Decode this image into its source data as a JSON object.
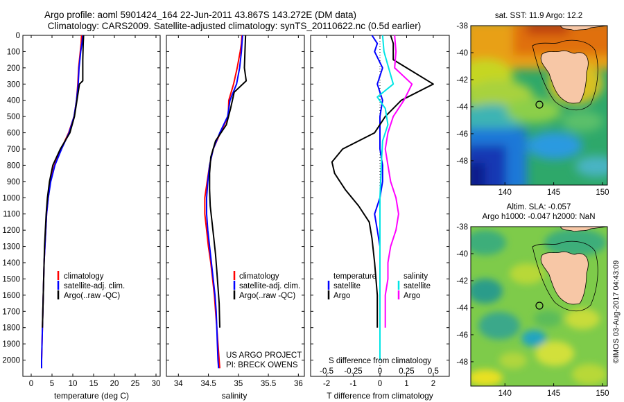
{
  "header": {
    "title_line1": "Argo profile: aoml 5901424_164 22-Jun-2011 43.867S 143.272E (DM data)",
    "title_line2": "Climatology: CARS2009. Satellite-adjusted climatology: synTS_20110622.nc (0.5d earlier)"
  },
  "colors": {
    "climatology": "#ff0000",
    "satellite": "#0000ff",
    "argo": "#000000",
    "salinity_satellite": "#00e5e5",
    "salinity_argo": "#ff00ff",
    "land": "#f7c7a6"
  },
  "chart_data": [
    {
      "type": "line",
      "id": "temperature",
      "xlabel": "temperature (deg C)",
      "ylabel": "",
      "xlim": [
        -2,
        31
      ],
      "ylim": [
        2100,
        0
      ],
      "xticks": [
        0,
        5,
        10,
        15,
        20,
        25,
        30
      ],
      "yticks": [
        0,
        100,
        200,
        300,
        400,
        500,
        600,
        700,
        800,
        900,
        1000,
        1100,
        1200,
        1300,
        1400,
        1500,
        1600,
        1700,
        1800,
        1900,
        2000
      ],
      "legend": [
        "climatology",
        "satellite-adj. clim.",
        "Argo(..raw -QC)"
      ],
      "series": [
        {
          "name": "climatology",
          "color_key": "climatology",
          "points": [
            [
              12.1,
              0
            ],
            [
              12.0,
              50
            ],
            [
              11.8,
              100
            ],
            [
              11.4,
              200
            ],
            [
              11.2,
              300
            ],
            [
              10.9,
              400
            ],
            [
              10.3,
              500
            ],
            [
              9.0,
              600
            ],
            [
              7.2,
              700
            ],
            [
              5.6,
              800
            ],
            [
              4.6,
              900
            ],
            [
              4.1,
              1000
            ],
            [
              3.7,
              1100
            ],
            [
              3.5,
              1200
            ],
            [
              3.3,
              1300
            ],
            [
              3.1,
              1400
            ],
            [
              3.0,
              1500
            ],
            [
              2.9,
              1600
            ],
            [
              2.8,
              1700
            ],
            [
              2.7,
              1800
            ],
            [
              2.6,
              1900
            ],
            [
              2.5,
              2000
            ],
            [
              2.5,
              2050
            ]
          ]
        },
        {
          "name": "satellite-adj. clim.",
          "color_key": "satellite",
          "points": [
            [
              12.4,
              0
            ],
            [
              12.2,
              50
            ],
            [
              11.9,
              100
            ],
            [
              11.5,
              200
            ],
            [
              11.3,
              300
            ],
            [
              10.9,
              400
            ],
            [
              10.3,
              500
            ],
            [
              9.1,
              600
            ],
            [
              7.3,
              700
            ],
            [
              5.7,
              800
            ],
            [
              4.7,
              900
            ],
            [
              4.1,
              1000
            ],
            [
              3.7,
              1100
            ],
            [
              3.5,
              1200
            ],
            [
              3.3,
              1300
            ],
            [
              3.1,
              1400
            ],
            [
              3.0,
              1500
            ],
            [
              2.9,
              1600
            ],
            [
              2.8,
              1700
            ],
            [
              2.7,
              1800
            ],
            [
              2.6,
              1900
            ],
            [
              2.5,
              2000
            ],
            [
              2.5,
              2050
            ]
          ]
        },
        {
          "name": "Argo(..raw -QC)",
          "color_key": "argo",
          "points": [
            [
              12.6,
              0
            ],
            [
              12.5,
              50
            ],
            [
              12.4,
              150
            ],
            [
              12.4,
              280
            ],
            [
              11.6,
              300
            ],
            [
              11.0,
              400
            ],
            [
              10.4,
              500
            ],
            [
              9.3,
              600
            ],
            [
              7.0,
              700
            ],
            [
              5.2,
              800
            ],
            [
              4.4,
              900
            ],
            [
              3.9,
              1000
            ],
            [
              3.6,
              1100
            ],
            [
              3.4,
              1200
            ],
            [
              3.2,
              1300
            ],
            [
              3.1,
              1400
            ],
            [
              3.0,
              1500
            ],
            [
              2.9,
              1600
            ],
            [
              2.8,
              1700
            ],
            [
              2.7,
              1800
            ]
          ]
        }
      ]
    },
    {
      "type": "line",
      "id": "salinity",
      "xlabel": "salinity",
      "ylabel": "",
      "xlim": [
        33.8,
        36.1
      ],
      "ylim": [
        2100,
        0
      ],
      "xticks": [
        34,
        34.5,
        35,
        35.5,
        36
      ],
      "legend": [
        "climatology",
        "satellite-adj. clim.",
        "Argo(..raw -QC)"
      ],
      "annotation": [
        "US ARGO PROJECT",
        "PI: BRECK OWENS"
      ],
      "series": [
        {
          "name": "climatology",
          "color_key": "climatology",
          "points": [
            [
              35.06,
              0
            ],
            [
              35.05,
              50
            ],
            [
              35.03,
              100
            ],
            [
              34.98,
              200
            ],
            [
              34.92,
              300
            ],
            [
              34.84,
              400
            ],
            [
              34.83,
              500
            ],
            [
              34.7,
              600
            ],
            [
              34.58,
              700
            ],
            [
              34.52,
              800
            ],
            [
              34.48,
              900
            ],
            [
              34.44,
              1000
            ],
            [
              34.44,
              1100
            ],
            [
              34.47,
              1200
            ],
            [
              34.5,
              1300
            ],
            [
              34.54,
              1400
            ],
            [
              34.57,
              1500
            ],
            [
              34.6,
              1600
            ],
            [
              34.62,
              1700
            ],
            [
              34.64,
              1800
            ],
            [
              34.66,
              1900
            ],
            [
              34.68,
              2000
            ],
            [
              34.69,
              2050
            ]
          ]
        },
        {
          "name": "satellite-adj. clim.",
          "color_key": "satellite",
          "points": [
            [
              35.07,
              0
            ],
            [
              35.06,
              50
            ],
            [
              35.05,
              100
            ],
            [
              35.02,
              200
            ],
            [
              34.97,
              300
            ],
            [
              34.86,
              400
            ],
            [
              34.82,
              500
            ],
            [
              34.69,
              600
            ],
            [
              34.58,
              700
            ],
            [
              34.52,
              800
            ],
            [
              34.49,
              900
            ],
            [
              34.47,
              1000
            ],
            [
              34.47,
              1100
            ],
            [
              34.49,
              1200
            ],
            [
              34.52,
              1300
            ],
            [
              34.55,
              1400
            ],
            [
              34.58,
              1500
            ],
            [
              34.61,
              1600
            ],
            [
              34.63,
              1700
            ],
            [
              34.64,
              1800
            ],
            [
              34.65,
              1900
            ],
            [
              34.66,
              2000
            ],
            [
              34.67,
              2050
            ]
          ]
        },
        {
          "name": "Argo(..raw -QC)",
          "color_key": "argo",
          "points": [
            [
              35.12,
              0
            ],
            [
              35.11,
              100
            ],
            [
              35.1,
              200
            ],
            [
              35.13,
              280
            ],
            [
              34.93,
              350
            ],
            [
              34.87,
              450
            ],
            [
              34.8,
              550
            ],
            [
              34.62,
              650
            ],
            [
              34.54,
              750
            ],
            [
              34.52,
              850
            ],
            [
              34.52,
              950
            ],
            [
              34.53,
              1050
            ],
            [
              34.56,
              1150
            ],
            [
              34.59,
              1250
            ],
            [
              34.62,
              1350
            ],
            [
              34.64,
              1450
            ],
            [
              34.66,
              1550
            ],
            [
              34.68,
              1650
            ],
            [
              34.69,
              1800
            ]
          ]
        }
      ]
    },
    {
      "type": "line",
      "id": "differences",
      "xlabel": "T difference from climatology",
      "top_axis_label": "S difference from climatology",
      "xlim": [
        -2.6,
        2.6
      ],
      "ylim": [
        2100,
        0
      ],
      "xticks": [
        -2,
        -1,
        0,
        1,
        2
      ],
      "top_xticks": [
        "-0.5",
        "-0.25",
        "0",
        "0.25",
        "0.5"
      ],
      "legend_temperature": [
        "temperature",
        "satellite",
        "Argo"
      ],
      "legend_salinity": [
        "salinity",
        "satellite",
        "Argo"
      ],
      "series": [
        {
          "name": "satellite",
          "color_key": "satellite",
          "points": [
            [
              -0.3,
              0
            ],
            [
              -0.1,
              50
            ],
            [
              -0.2,
              100
            ],
            [
              0.1,
              200
            ],
            [
              -0.1,
              300
            ],
            [
              0.1,
              400
            ],
            [
              0.0,
              500
            ],
            [
              0.0,
              600
            ],
            [
              0.0,
              700
            ],
            [
              0.1,
              800
            ],
            [
              0.1,
              900
            ],
            [
              0.0,
              1000
            ],
            [
              -0.2,
              1100
            ],
            [
              -0.1,
              1200
            ],
            [
              0.0,
              1300
            ],
            [
              0.0,
              1400
            ],
            [
              0.0,
              1600
            ],
            [
              0.0,
              1800
            ],
            [
              0.0,
              2000
            ]
          ]
        },
        {
          "name": "Argo",
          "color_key": "argo",
          "points": [
            [
              0.4,
              0
            ],
            [
              0.5,
              50
            ],
            [
              0.5,
              150
            ],
            [
              1.0,
              200
            ],
            [
              2.0,
              300
            ],
            [
              0.8,
              400
            ],
            [
              0.2,
              500
            ],
            [
              -0.2,
              600
            ],
            [
              -1.4,
              700
            ],
            [
              -1.8,
              780
            ],
            [
              -1.7,
              850
            ],
            [
              -1.3,
              950
            ],
            [
              -0.8,
              1050
            ],
            [
              -0.4,
              1150
            ],
            [
              -0.3,
              1250
            ],
            [
              -0.2,
              1400
            ],
            [
              -0.1,
              1600
            ],
            [
              -0.1,
              1800
            ]
          ]
        },
        {
          "name": "salinity satellite",
          "color_key": "salinity_satellite",
          "points": [
            [
              0.1,
              0
            ],
            [
              0.15,
              100
            ],
            [
              0.5,
              300
            ],
            [
              -0.1,
              380
            ],
            [
              0.2,
              450
            ],
            [
              0.3,
              550
            ],
            [
              0.1,
              650
            ],
            [
              0.05,
              800
            ],
            [
              0.0,
              1000
            ],
            [
              0.0,
              1200
            ],
            [
              0.0,
              1400
            ],
            [
              0.0,
              1700
            ],
            [
              0.0,
              2000
            ]
          ]
        },
        {
          "name": "salinity Argo",
          "color_key": "salinity_argo",
          "points": [
            [
              0.55,
              0
            ],
            [
              0.6,
              100
            ],
            [
              0.55,
              200
            ],
            [
              1.2,
              300
            ],
            [
              0.9,
              400
            ],
            [
              0.5,
              500
            ],
            [
              0.3,
              600
            ],
            [
              0.2,
              700
            ],
            [
              0.3,
              800
            ],
            [
              0.4,
              900
            ],
            [
              0.6,
              1000
            ],
            [
              0.7,
              1100
            ],
            [
              0.6,
              1200
            ],
            [
              0.4,
              1300
            ],
            [
              0.3,
              1400
            ],
            [
              0.3,
              1500
            ],
            [
              0.2,
              1600
            ],
            [
              0.2,
              1800
            ]
          ]
        }
      ]
    },
    {
      "type": "heatmap",
      "id": "sst_map",
      "title": "sat. SST: 11.9 Argo: 12.2",
      "xlim": [
        136.5,
        150.5
      ],
      "ylim": [
        -49.8,
        -38
      ],
      "xticks": [
        140,
        145,
        150
      ],
      "yticks": [
        -38,
        -40,
        -42,
        -44,
        -46,
        -48
      ],
      "marker": [
        143.272,
        -43.867
      ]
    },
    {
      "type": "heatmap",
      "id": "sla_map",
      "title_line1": "Altim. SLA: -0.057",
      "title_line2": "Argo h1000: -0.047 h2000: NaN",
      "xlim": [
        136.5,
        150.5
      ],
      "ylim": [
        -49.8,
        -38
      ],
      "xticks": [
        140,
        145,
        150
      ],
      "yticks": [
        -38,
        -40,
        -42,
        -44,
        -46,
        -48
      ],
      "marker": [
        143.272,
        -43.867
      ]
    }
  ],
  "footer": {
    "stamp": "©IMOS 03-Aug-2017 04:43:09"
  }
}
